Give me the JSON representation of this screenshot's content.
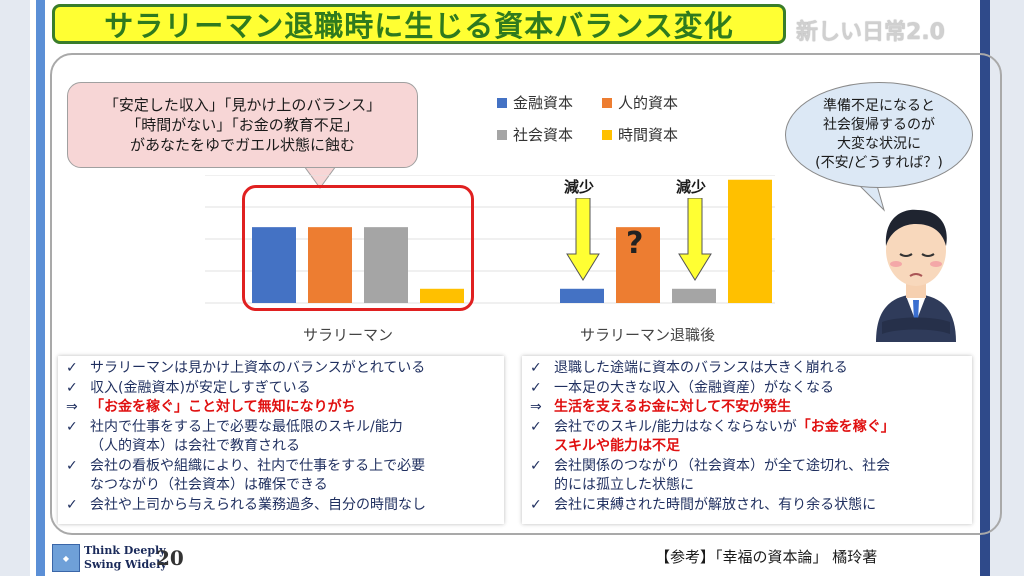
{
  "title": "サラリーマン退職時に生じる資本バランス変化",
  "subtitle": "新しい日常2.0",
  "bubble_left": [
    "「安定した収入」「見かけ上のバランス」",
    "「時間がない」「お金の教育不足」",
    "があなたをゆでガエル状態に蝕む"
  ],
  "bubble_right": [
    "準備不足になると",
    "社会復帰するのが",
    "大変な状況に",
    "(不安/どうすれば？)"
  ],
  "annotations": {
    "decrease": "減少",
    "question": "?"
  },
  "chart_data": {
    "type": "bar",
    "categories": [
      "サラリーマン",
      "サラリーマン退職後"
    ],
    "series": [
      {
        "name": "金融資本",
        "color": "#4472c4",
        "values": [
          80,
          15
        ]
      },
      {
        "name": "人的資本",
        "color": "#ed7d31",
        "values": [
          80,
          80
        ]
      },
      {
        "name": "社会資本",
        "color": "#a5a5a5",
        "values": [
          80,
          15
        ]
      },
      {
        "name": "時間資本",
        "color": "#ffc000",
        "values": [
          15,
          130
        ]
      }
    ],
    "ylim": [
      0,
      135
    ],
    "grid": true,
    "legend": "top"
  },
  "left_list": [
    {
      "mark": "✓",
      "text": "サラリーマンは見かけ上資本のバランスがとれている"
    },
    {
      "mark": "✓",
      "text": "収入(金融資本)が安定しすぎている"
    },
    {
      "mark": "⇒",
      "text": "「お金を稼ぐ」こと対して無知になりがち",
      "red": true
    },
    {
      "mark": "✓",
      "text": "社内で仕事をする上で必要な最低限のスキル/能力"
    },
    {
      "mark": "",
      "text": "（人的資本）は会社で教育される"
    },
    {
      "mark": "✓",
      "text": "会社の看板や組織により、社内で仕事をする上で必要"
    },
    {
      "mark": "",
      "text": "なつながり（社会資本）は確保できる"
    },
    {
      "mark": "✓",
      "text": "会社や上司から与えられる業務過多、自分の時間なし"
    }
  ],
  "right_list": [
    {
      "mark": "✓",
      "text": "退職した途端に資本のバランスは大きく崩れる"
    },
    {
      "mark": "✓",
      "text": "一本足の大きな収入（金融資産）がなくなる"
    },
    {
      "mark": "⇒",
      "text": "生活を支えるお金に対して不安が発生",
      "red": true
    },
    {
      "mark": "✓",
      "text": "会社でのスキル/能力はなくならないが",
      "tail": "「お金を稼ぐ」"
    },
    {
      "mark": "",
      "text": "スキルや能力は不足",
      "red": true
    },
    {
      "mark": "✓",
      "text": "会社関係のつながり（社会資本）が全て途切れ、社会"
    },
    {
      "mark": "",
      "text": "的には孤立した状態に"
    },
    {
      "mark": "✓",
      "text": "会社に束縛された時間が解放され、有り余る状態に"
    }
  ],
  "footer": {
    "logo_line1": "Think Deeply",
    "logo_line2": "Swing Widely",
    "page": "20",
    "reference": "【参考】「幸福の資本論」 橘玲著"
  }
}
